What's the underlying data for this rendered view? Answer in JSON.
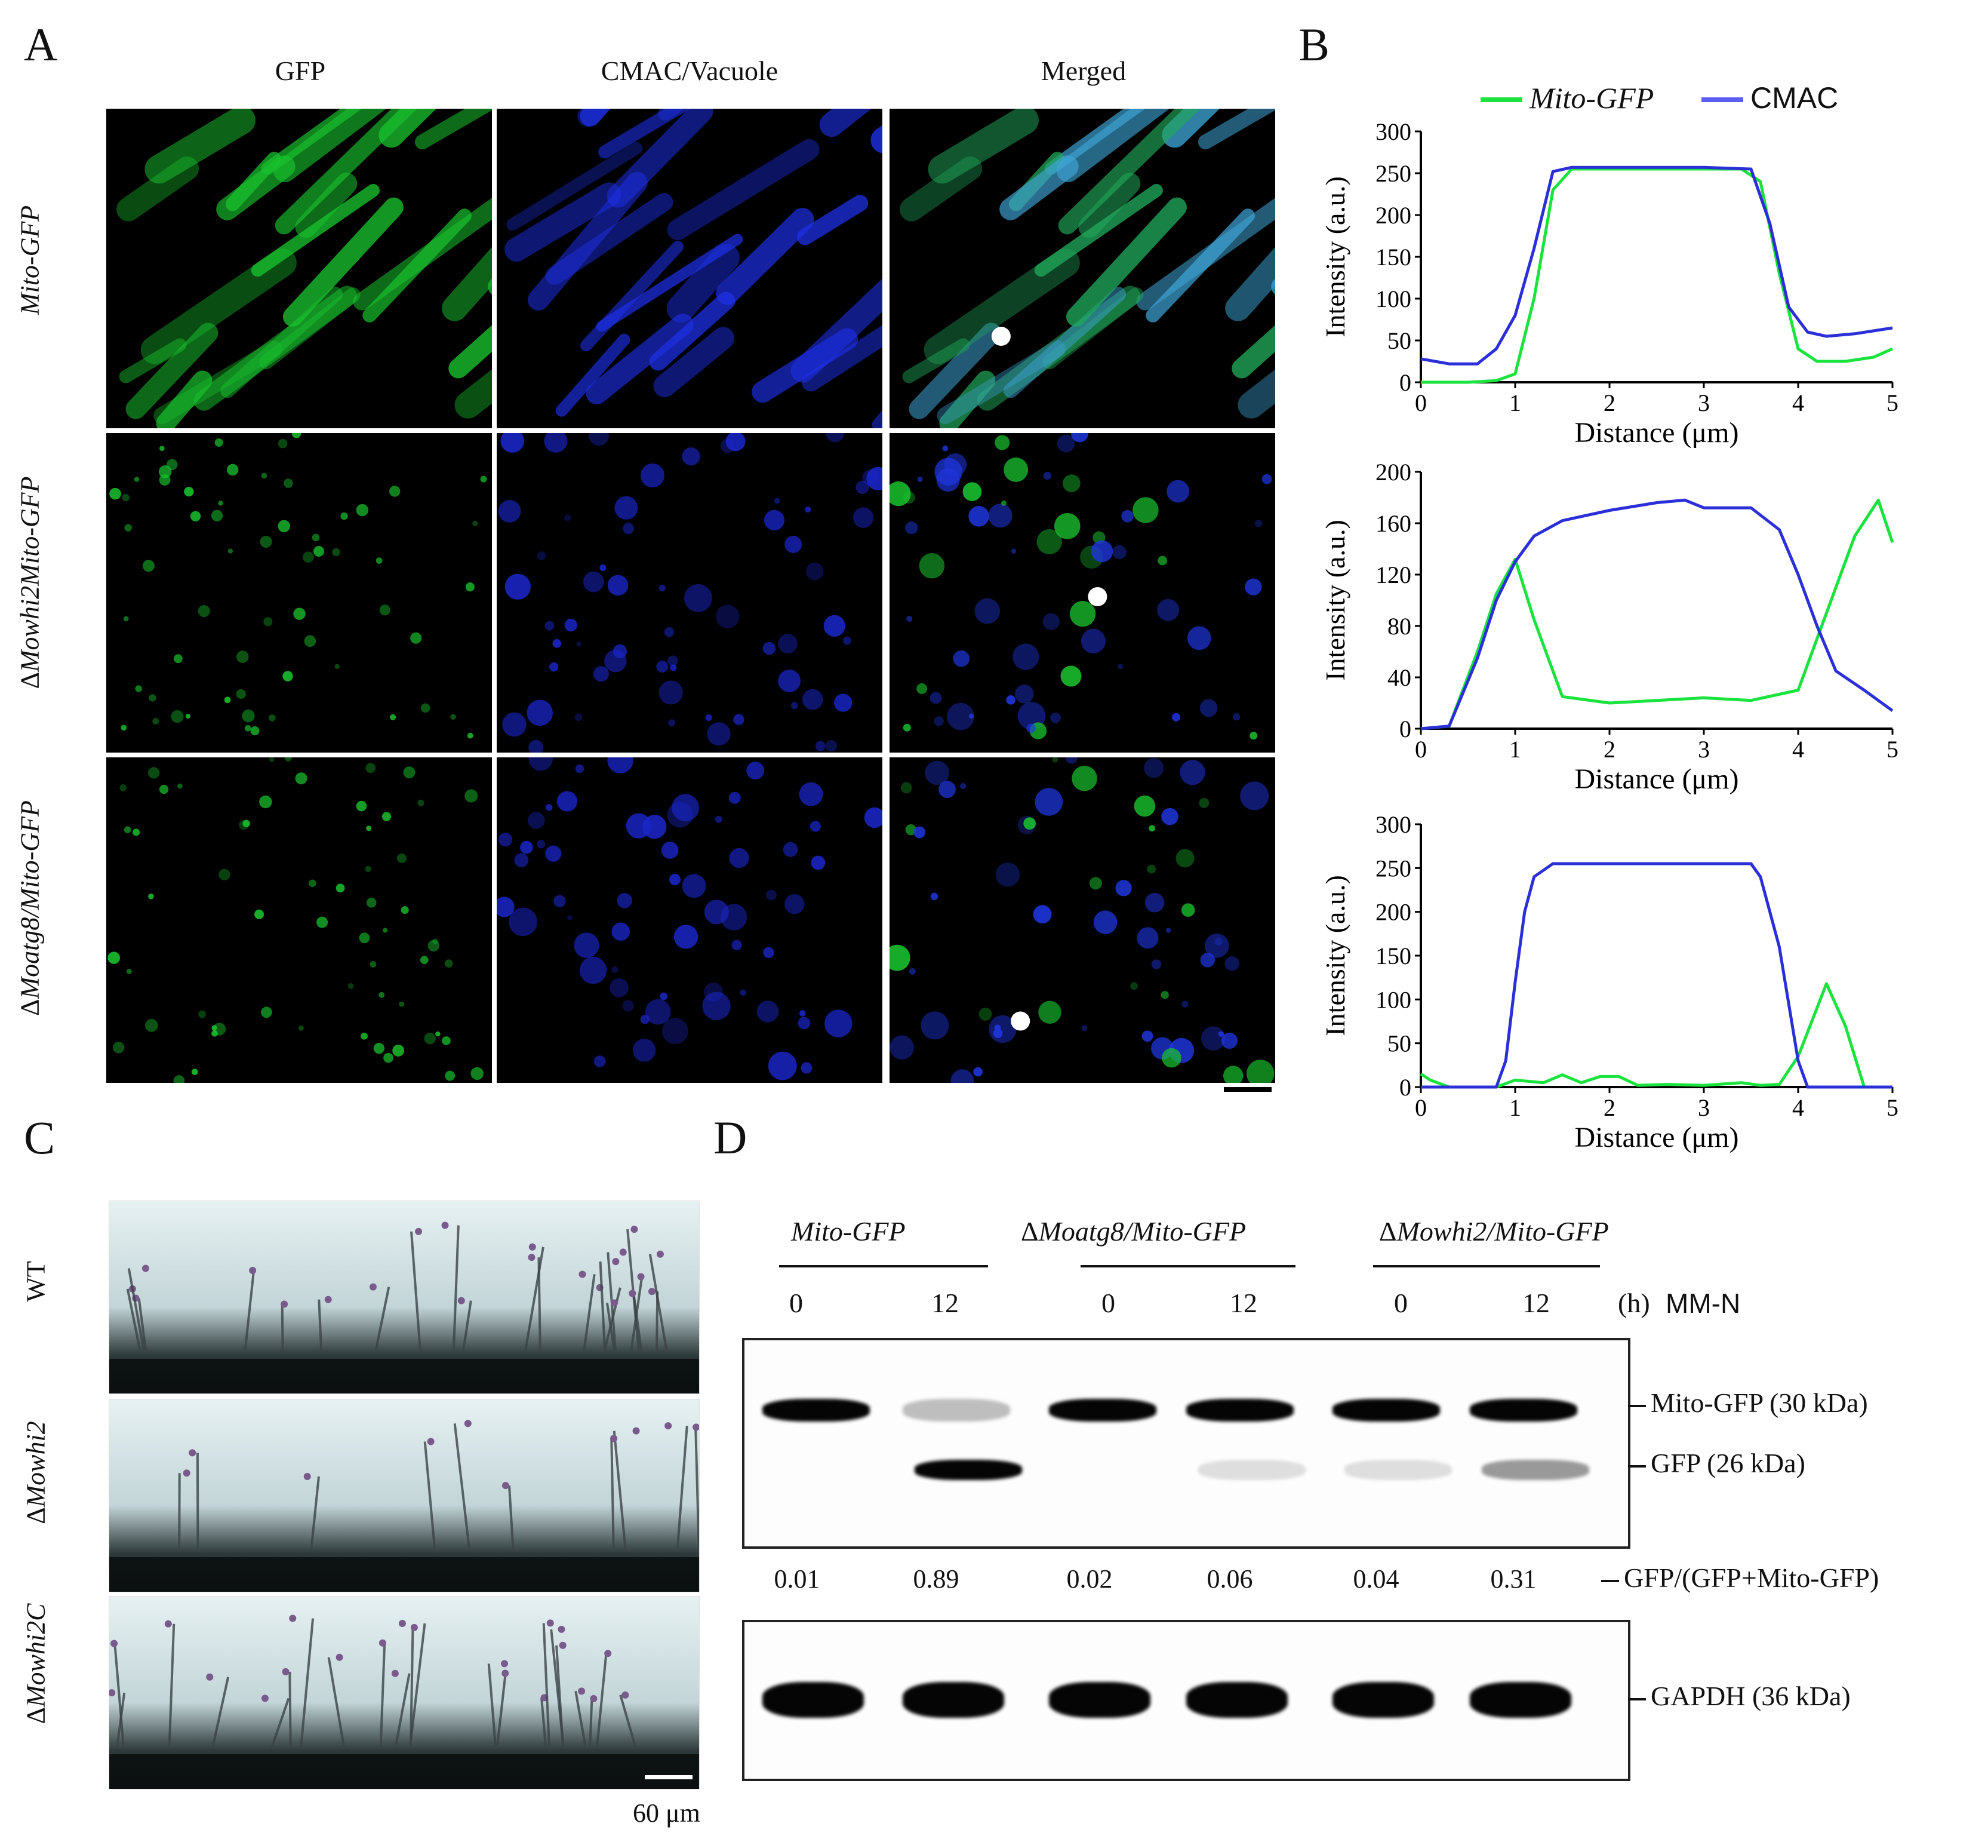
{
  "panel_labels": {
    "A": "A",
    "B": "B",
    "C": "C",
    "D": "D"
  },
  "panelA": {
    "column_titles": [
      "GFP",
      "CMAC/Vacuole",
      "Merged"
    ],
    "row_labels": [
      {
        "prefix": "",
        "text": "Mito-GFP"
      },
      {
        "prefix": "Δ",
        "text": "Mowhi2Mito-GFP"
      },
      {
        "prefix": "Δ",
        "text": "Moatg8/Mito-GFP"
      }
    ]
  },
  "panelB": {
    "legend": {
      "gfp": "Mito-GFP",
      "cmac": "CMAC"
    },
    "colors": {
      "gfp": "#19e33c",
      "cmac": "#2b2fd8"
    }
  },
  "chart_data": [
    {
      "type": "line",
      "xlabel": "Distance (μm)",
      "ylabel": "Intensity (a.u.)",
      "xlim": [
        0,
        5
      ],
      "ylim": [
        0,
        300
      ],
      "xticks": [
        0,
        1,
        2,
        3,
        4,
        5
      ],
      "yticks": [
        0,
        50,
        100,
        150,
        200,
        250,
        300
      ],
      "series": [
        {
          "name": "Mito-GFP",
          "x": [
            0,
            0.5,
            0.8,
            1.0,
            1.2,
            1.4,
            1.6,
            2.0,
            2.5,
            3.0,
            3.4,
            3.6,
            3.8,
            4.0,
            4.2,
            4.5,
            4.8,
            5.0
          ],
          "y": [
            0,
            0,
            2,
            10,
            100,
            230,
            255,
            255,
            255,
            255,
            255,
            240,
            130,
            40,
            25,
            25,
            30,
            40
          ]
        },
        {
          "name": "CMAC",
          "x": [
            0,
            0.3,
            0.6,
            0.8,
            1.0,
            1.2,
            1.4,
            1.6,
            2.0,
            2.5,
            3.0,
            3.5,
            3.7,
            3.9,
            4.1,
            4.3,
            4.6,
            5.0
          ],
          "y": [
            28,
            22,
            22,
            40,
            80,
            160,
            252,
            257,
            257,
            257,
            257,
            255,
            190,
            90,
            60,
            55,
            58,
            65
          ]
        }
      ]
    },
    {
      "type": "line",
      "xlabel": "Distance (μm)",
      "ylabel": "Intensity (a.u.)",
      "xlim": [
        0,
        5
      ],
      "ylim": [
        0,
        200
      ],
      "xticks": [
        0,
        1,
        2,
        3,
        4,
        5
      ],
      "yticks": [
        0,
        40,
        80,
        120,
        160,
        200
      ],
      "series": [
        {
          "name": "Mito-GFP",
          "x": [
            0,
            0.3,
            0.6,
            0.8,
            1.0,
            1.2,
            1.5,
            2.0,
            2.5,
            3.0,
            3.5,
            4.0,
            4.3,
            4.6,
            4.85,
            5.0
          ],
          "y": [
            0,
            2,
            60,
            105,
            132,
            85,
            25,
            20,
            22,
            24,
            22,
            30,
            90,
            150,
            178,
            145
          ]
        },
        {
          "name": "CMAC",
          "x": [
            0,
            0.3,
            0.6,
            0.8,
            1.0,
            1.2,
            1.5,
            2.0,
            2.5,
            2.8,
            3.0,
            3.5,
            3.8,
            4.0,
            4.2,
            4.4,
            4.7,
            5.0
          ],
          "y": [
            0,
            2,
            55,
            100,
            130,
            150,
            162,
            170,
            176,
            178,
            172,
            172,
            155,
            120,
            80,
            45,
            30,
            14
          ]
        }
      ]
    },
    {
      "type": "line",
      "xlabel": "Distance (μm)",
      "ylabel": "Intensity (a.u.)",
      "xlim": [
        0,
        5
      ],
      "ylim": [
        0,
        300
      ],
      "xticks": [
        0,
        1,
        2,
        3,
        4,
        5
      ],
      "yticks": [
        0,
        50,
        100,
        150,
        200,
        250,
        300
      ],
      "series": [
        {
          "name": "Mito-GFP",
          "x": [
            0,
            0.1,
            0.3,
            0.8,
            1.0,
            1.3,
            1.5,
            1.7,
            1.9,
            2.1,
            2.3,
            2.6,
            3.0,
            3.4,
            3.6,
            3.8,
            4.0,
            4.3,
            4.5,
            4.7,
            5.0
          ],
          "y": [
            15,
            8,
            0,
            0,
            8,
            5,
            14,
            5,
            12,
            12,
            2,
            3,
            2,
            5,
            2,
            3,
            35,
            118,
            70,
            0,
            0
          ]
        },
        {
          "name": "CMAC",
          "x": [
            0,
            0.5,
            0.8,
            0.9,
            1.0,
            1.1,
            1.2,
            1.4,
            2.0,
            2.5,
            3.0,
            3.5,
            3.6,
            3.8,
            4.0,
            4.1,
            5.0
          ],
          "y": [
            0,
            0,
            0,
            30,
            120,
            200,
            240,
            255,
            255,
            255,
            255,
            255,
            240,
            160,
            30,
            0,
            0
          ]
        }
      ]
    }
  ],
  "panelC": {
    "row_labels": [
      {
        "prefix": "",
        "text": "WT"
      },
      {
        "prefix": "Δ",
        "text": "Mowhi2"
      },
      {
        "prefix": "Δ",
        "text": "Mowhi2C"
      }
    ],
    "scale_bar": "60 μm"
  },
  "panelD": {
    "strains": [
      {
        "prefix": "",
        "text": "Mito-GFP"
      },
      {
        "prefix": "Δ",
        "text": "Moatg8/Mito-GFP"
      },
      {
        "prefix": "Δ",
        "text": "Mowhi2/Mito-GFP"
      }
    ],
    "timepoints": [
      "0",
      "12",
      "0",
      "12",
      "0",
      "12"
    ],
    "time_unit": "(h)",
    "condition": "MM-N",
    "band_labels": {
      "mito_gfp": "Mito-GFP (30 kDa)",
      "gfp": "GFP (26 kDa)",
      "ratio": "GFP/(GFP+Mito-GFP)",
      "gapdh": "GAPDH (36 kDa)"
    },
    "ratios": [
      "0.01",
      "0.89",
      "0.02",
      "0.06",
      "0.04",
      "0.31"
    ]
  }
}
